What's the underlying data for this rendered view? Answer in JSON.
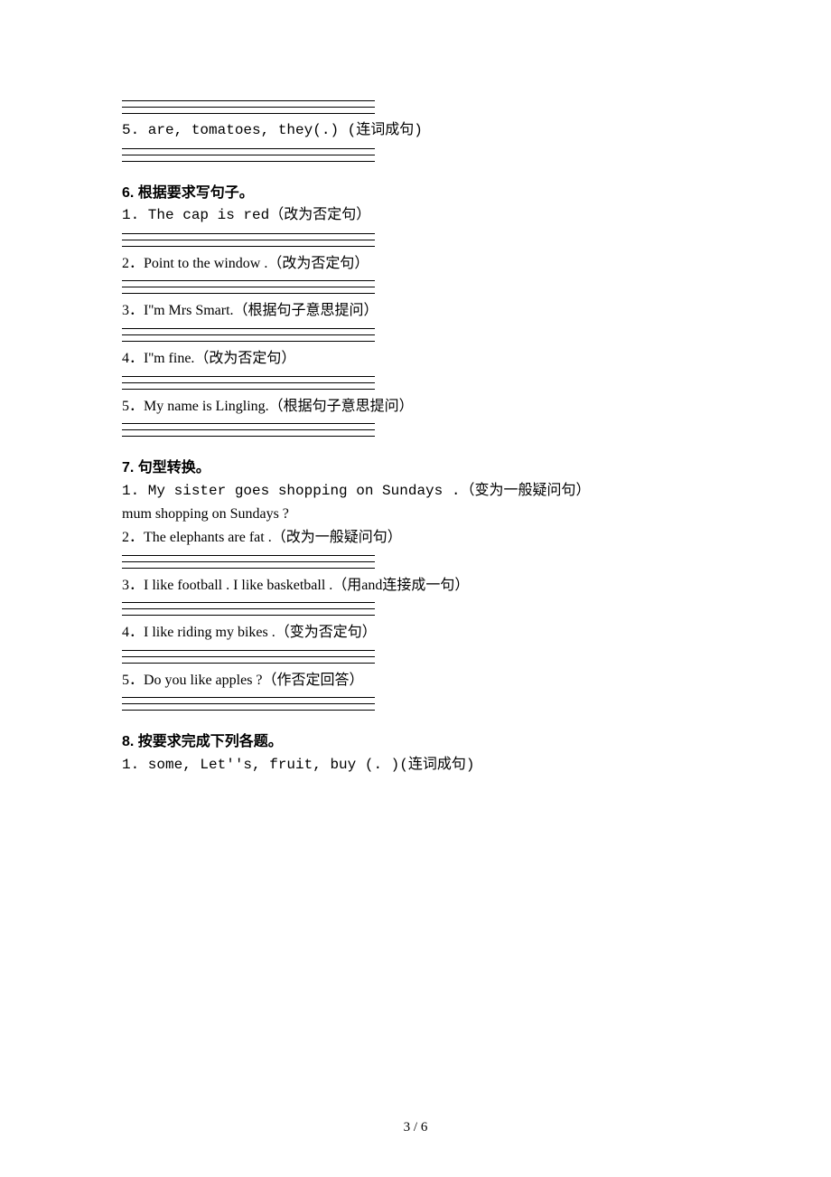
{
  "q5_5": "5. are, tomatoes, they(.) (连词成句)",
  "s6_title": "6. 根据要求写句子。",
  "s6_1": "1. The cap is red（改为否定句）",
  "s6_2": "2．Point to the window .（改为否定句）",
  "s6_3": "3．I''m Mrs Smart.（根据句子意思提问）",
  "s6_4": "4．I''m fine.（改为否定句）",
  "s6_5": "5．My name is Lingling.（根据句子意思提问）",
  "s7_title": "7. 句型转换。",
  "s7_1a": "1. My sister goes shopping on Sundays .（变为一般疑问句）",
  "s7_1b": "mum   shopping on Sundays ?",
  "s7_2": "2．The elephants are fat .（改为一般疑问句）",
  "s7_3": "3．I like football . I like basketball .（用and连接成一句）",
  "s7_4": "4．I like riding my bikes .（变为否定句）",
  "s7_5": "5．Do you like apples ?（作否定回答）",
  "s8_title": "8. 按要求完成下列各题。",
  "s8_1": "1. some, Let''s, fruit, buy (. )(连词成句)",
  "page_num": "3 / 6"
}
